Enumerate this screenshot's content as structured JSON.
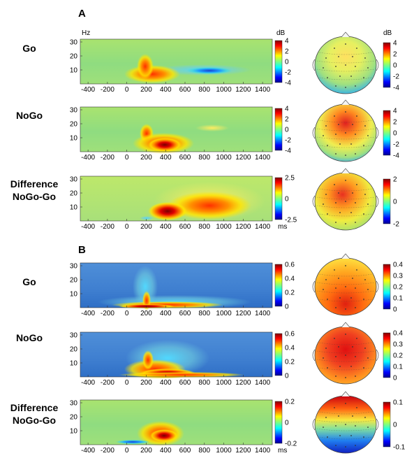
{
  "panels": [
    {
      "letter": "A",
      "rows": [
        {
          "label_lines": [
            "Go"
          ],
          "colorbar_ticks": [
            "4",
            "2",
            "0",
            "-2",
            "-4"
          ],
          "unit": "dB",
          "topo_ticks": [
            "4",
            "2",
            "0",
            "-2",
            "-4"
          ],
          "topo_unit": "dB",
          "y_ticks": [
            "30",
            "20",
            "10"
          ],
          "y_unit": "Hz",
          "x_ticks": [
            "-400",
            "-200",
            "0",
            "200",
            "400",
            "600",
            "800",
            "1000",
            "1200",
            "1400"
          ]
        },
        {
          "label_lines": [
            "NoGo"
          ],
          "colorbar_ticks": [
            "4",
            "2",
            "0",
            "-2",
            "-4"
          ],
          "topo_ticks": [
            "4",
            "2",
            "0",
            "-2",
            "-4"
          ],
          "y_ticks": [
            "30",
            "20",
            "10"
          ],
          "x_ticks": [
            "-400",
            "-200",
            "0",
            "200",
            "400",
            "600",
            "800",
            "1000",
            "1200",
            "1400"
          ]
        },
        {
          "label_lines": [
            "Difference",
            "NoGo-Go"
          ],
          "colorbar_ticks": [
            "2.5",
            "0",
            "-2.5"
          ],
          "topo_ticks": [
            "2",
            "0",
            "-2"
          ],
          "y_ticks": [
            "30",
            "20",
            "10"
          ],
          "x_ticks": [
            "-400",
            "-200",
            "0",
            "200",
            "400",
            "600",
            "800",
            "1000",
            "1200",
            "1400"
          ],
          "x_unit": "ms"
        }
      ]
    },
    {
      "letter": "B",
      "rows": [
        {
          "label_lines": [
            "Go"
          ],
          "colorbar_ticks": [
            "0.6",
            "0.4",
            "0.2",
            "0"
          ],
          "topo_ticks": [
            "0.4",
            "0.3",
            "0.2",
            "0.1",
            "0"
          ],
          "y_ticks": [
            "30",
            "20",
            "10"
          ],
          "x_ticks": [
            "-400",
            "-200",
            "0",
            "200",
            "400",
            "600",
            "800",
            "1000",
            "1200",
            "1400"
          ]
        },
        {
          "label_lines": [
            "NoGo"
          ],
          "colorbar_ticks": [
            "0.6",
            "0.4",
            "0.2",
            "0"
          ],
          "topo_ticks": [
            "0.4",
            "0.3",
            "0.2",
            "0.1",
            "0"
          ],
          "y_ticks": [
            "30",
            "20",
            "10"
          ],
          "x_ticks": [
            "-400",
            "-200",
            "0",
            "200",
            "400",
            "600",
            "800",
            "1000",
            "1200",
            "1400"
          ]
        },
        {
          "label_lines": [
            "Difference",
            "NoGo-Go"
          ],
          "colorbar_ticks": [
            "0.2",
            "0",
            "-0.2"
          ],
          "topo_ticks": [
            "0.1",
            "0",
            "-0.1"
          ],
          "y_ticks": [
            "30",
            "20",
            "10"
          ],
          "x_ticks": [
            "-400",
            "-200",
            "0",
            "200",
            "400",
            "600",
            "800",
            "1000",
            "1200",
            "1400"
          ],
          "x_unit": "ms"
        }
      ]
    }
  ],
  "colors": {
    "jet_dark_blue": "#00008f",
    "jet_blue": "#0050ff",
    "jet_cyan": "#00dfff",
    "jet_green": "#60ff9f",
    "jet_yellow": "#ffef00",
    "jet_red": "#ff3000",
    "jet_dark_red": "#800000"
  }
}
